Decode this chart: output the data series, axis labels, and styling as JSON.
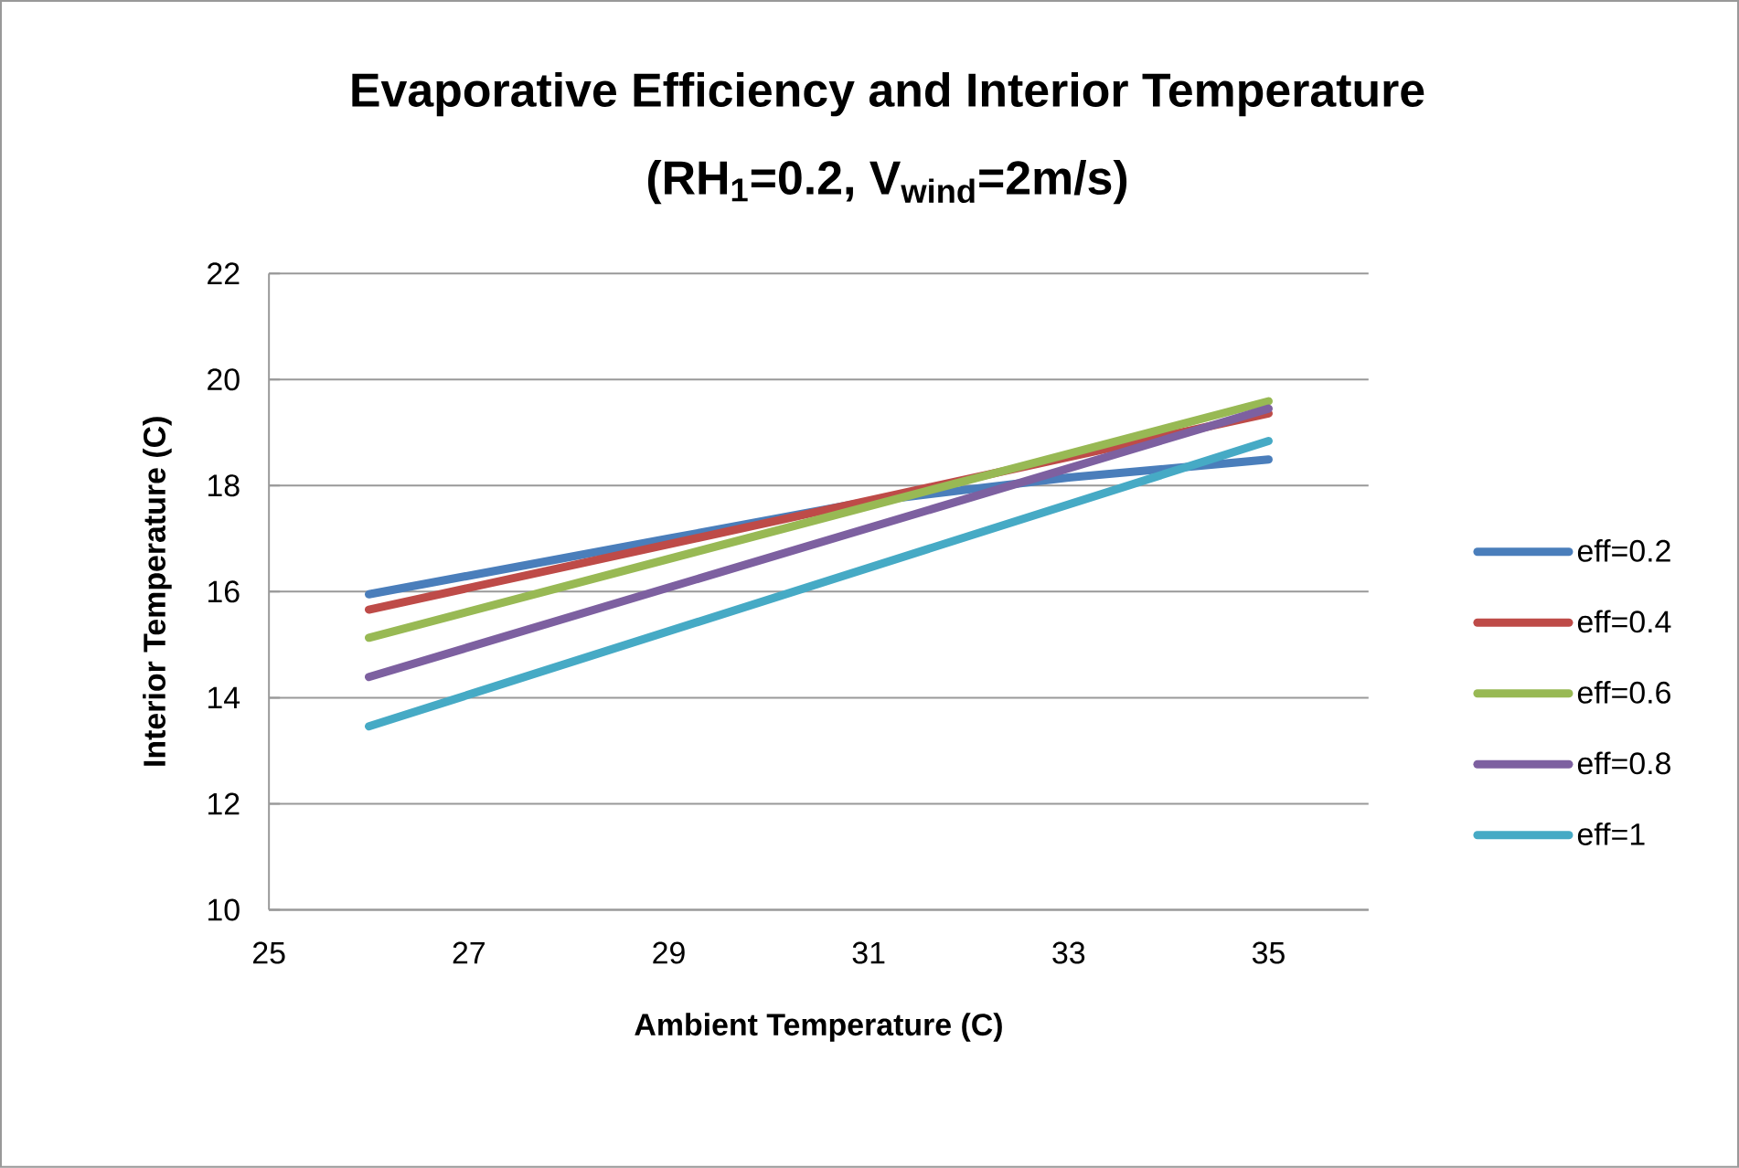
{
  "chart_data": {
    "type": "line",
    "title": "Evaporative Efficiency and Interior Temperature",
    "subtitle": "(RH$_{1}$=0.2, V$_{wind}$=2m/s)",
    "xlabel": "Ambient Temperature (C)",
    "ylabel": "Interior Temperature (C)",
    "xlim": [
      25,
      36
    ],
    "xticks": [
      25,
      27,
      29,
      31,
      33,
      35
    ],
    "ylim": [
      10,
      22
    ],
    "yticks": [
      10,
      12,
      14,
      16,
      18,
      20,
      22
    ],
    "grid": "y",
    "legend": "right",
    "marker": "none",
    "line_style": "solid",
    "series": [
      {
        "name": "eff=0.2",
        "color": "#4a7ebb",
        "x": [
          26,
          29,
          31,
          33,
          35
        ],
        "values": [
          15.95,
          17.0,
          17.7,
          18.15,
          18.49
        ]
      },
      {
        "name": "eff=0.4",
        "color": "#be4b48",
        "x": [
          26,
          35
        ],
        "values": [
          15.66,
          19.36
        ]
      },
      {
        "name": "eff=0.6",
        "color": "#98b954",
        "x": [
          26,
          35
        ],
        "values": [
          15.13,
          19.59
        ]
      },
      {
        "name": "eff=0.8",
        "color": "#7d60a0",
        "x": [
          26,
          35
        ],
        "values": [
          14.39,
          19.45
        ]
      },
      {
        "name": "eff=1",
        "color": "#46aac5",
        "x": [
          26,
          35
        ],
        "values": [
          13.46,
          18.84
        ]
      }
    ]
  }
}
